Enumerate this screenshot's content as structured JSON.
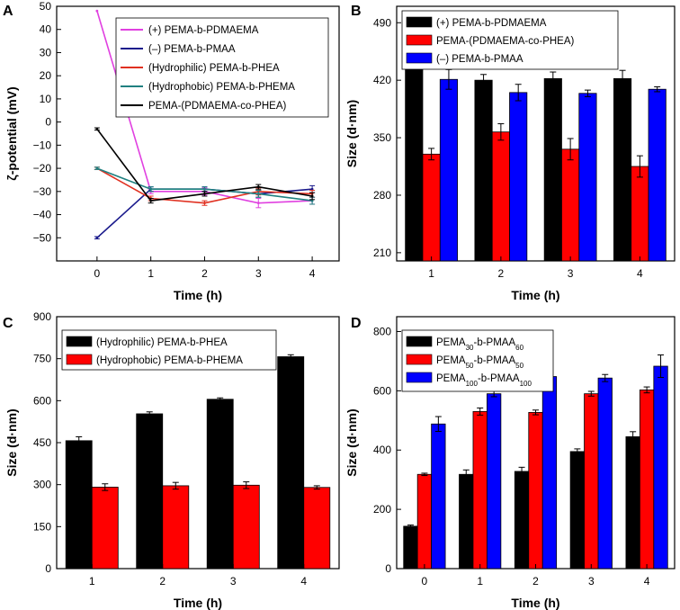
{
  "chart_data": [
    {
      "panel": "A",
      "type": "line",
      "xlabel": "Time (h)",
      "ylabel": "ζ-potential (mV)",
      "x": [
        0,
        1,
        2,
        3,
        4
      ],
      "xlim": [
        -0.75,
        4.5
      ],
      "ylim": [
        -60,
        50
      ],
      "yticks": [
        50,
        40,
        30,
        20,
        10,
        0,
        -10,
        -20,
        -30,
        -40,
        -50
      ],
      "ytick_labels": [
        "50",
        "40",
        "30",
        "20",
        "10",
        "0",
        "−10",
        "−20",
        "−30",
        "−40",
        "−50"
      ],
      "legend_position": "top-right",
      "series": [
        {
          "name": "(+) PEMA-b-PDMAEMA",
          "color": "#e040e0",
          "values": [
            48,
            -30,
            -30,
            -35,
            -34
          ],
          "err": [
            0,
            1,
            1.5,
            2,
            1.5
          ]
        },
        {
          "name": "(–) PEMA-b-PMAA",
          "color": "#1a1a8c",
          "values": [
            -50,
            -29,
            -29,
            -31,
            -29
          ],
          "err": [
            0.5,
            1,
            1,
            1.5,
            1.5
          ]
        },
        {
          "name": "(Hydrophilic) PEMA-b-PHEA",
          "color": "#e03020",
          "values": [
            -20,
            -33,
            -35,
            -30,
            -31
          ],
          "err": [
            0.5,
            1,
            1,
            1.5,
            1.5
          ]
        },
        {
          "name": "(Hydrophobic) PEMA-b-PHEMA",
          "color": "#208080",
          "values": [
            -20,
            -29,
            -29,
            -31,
            -34
          ],
          "err": [
            0.5,
            1,
            1,
            1.5,
            1.5
          ]
        },
        {
          "name": "PEMA-(PDMAEMA-co-PHEA)",
          "color": "#000000",
          "values": [
            -3,
            -34,
            -31,
            -28,
            -32
          ],
          "err": [
            0.5,
            1,
            1,
            1,
            1.5
          ]
        }
      ]
    },
    {
      "panel": "B",
      "type": "bar",
      "xlabel": "Time (h)",
      "ylabel": "Size (d·nm)",
      "categories": [
        "1",
        "2",
        "3",
        "4"
      ],
      "ylim": [
        200,
        510
      ],
      "yticks": [
        210,
        280,
        350,
        420,
        490
      ],
      "legend_position": "top-left",
      "series": [
        {
          "name": "(+) PEMA-b-PDMAEMA",
          "color": "#000000",
          "values": [
            450,
            420,
            422,
            422
          ],
          "err": [
            10,
            7,
            8,
            10
          ]
        },
        {
          "name": "PEMA-(PDMAEMA-co-PHEA)",
          "color": "#ff0000",
          "values": [
            330,
            357,
            336,
            315
          ],
          "err": [
            7,
            10,
            13,
            13
          ]
        },
        {
          "name": "(–) PEMA-b-PMAA",
          "color": "#0000ff",
          "values": [
            421,
            405,
            404,
            409
          ],
          "err": [
            12,
            10,
            4,
            3
          ]
        }
      ]
    },
    {
      "panel": "C",
      "type": "bar",
      "xlabel": "Time (h)",
      "ylabel": "Size (d·nm)",
      "categories": [
        "1",
        "2",
        "3",
        "4"
      ],
      "ylim": [
        0,
        900
      ],
      "yticks": [
        0,
        150,
        300,
        450,
        600,
        750,
        900
      ],
      "legend_position": "top-left",
      "series": [
        {
          "name": "(Hydrophilic) PEMA-b-PHEA",
          "color": "#000000",
          "values": [
            457,
            553,
            605,
            757
          ],
          "err": [
            14,
            7,
            5,
            7
          ]
        },
        {
          "name": "(Hydrophobic) PEMA-b-PHEMA",
          "color": "#ff0000",
          "values": [
            291,
            296,
            298,
            290
          ],
          "err": [
            12,
            12,
            12,
            6
          ]
        }
      ]
    },
    {
      "panel": "D",
      "type": "bar",
      "xlabel": "Time (h)",
      "ylabel": "Size (d·nm)",
      "categories": [
        "0",
        "1",
        "2",
        "3",
        "4"
      ],
      "ylim": [
        0,
        850
      ],
      "yticks": [
        0,
        200,
        400,
        600,
        800
      ],
      "legend_position": "top-left",
      "series": [
        {
          "name": "PEMA30-b-PMAA60",
          "name_base": "PEMA",
          "name_sub1": "30",
          "name_mid": "-b-PMAA",
          "name_sub2": "60",
          "color": "#000000",
          "values": [
            143,
            318,
            328,
            395,
            445
          ],
          "err": [
            4,
            15,
            14,
            9,
            17
          ]
        },
        {
          "name": "PEMA50-b-PMAA50",
          "name_base": "PEMA",
          "name_sub1": "50",
          "name_mid": "-b-PMAA",
          "name_sub2": "50",
          "color": "#ff0000",
          "values": [
            318,
            530,
            527,
            590,
            603
          ],
          "err": [
            4,
            12,
            8,
            8,
            10
          ]
        },
        {
          "name": "PEMA100-b-PMAA100",
          "name_base": "PEMA",
          "name_sub1": "100",
          "name_mid": "-b-PMAA",
          "name_sub2": "100",
          "color": "#0000ff",
          "values": [
            488,
            590,
            648,
            643,
            683
          ],
          "err": [
            25,
            10,
            3,
            12,
            38
          ]
        }
      ]
    }
  ]
}
